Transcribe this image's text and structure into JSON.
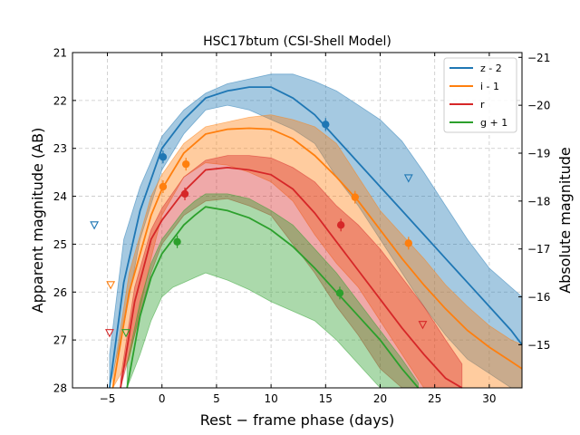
{
  "chart_data": {
    "type": "line",
    "title": "HSC17btum (CSI-Shell Model)",
    "xlabel": "Rest − frame phase (days)",
    "ylabel": "Apparent magnitude (AB)",
    "y2label": "Absolute magnitude",
    "xlim": [
      -8.2,
      33
    ],
    "ylim": [
      28,
      21
    ],
    "y2lim": [
      -14.1,
      -21.1
    ],
    "grid": true,
    "legend_position": "top-right",
    "x_ticks": [
      -5,
      0,
      5,
      10,
      15,
      20,
      25,
      30
    ],
    "x_tick_labels": [
      "−5",
      "0",
      "5",
      "10",
      "15",
      "20",
      "25",
      "30"
    ],
    "y_ticks": [
      21,
      22,
      23,
      24,
      25,
      26,
      27,
      28
    ],
    "y_tick_labels": [
      "21",
      "22",
      "23",
      "24",
      "25",
      "26",
      "27",
      "28"
    ],
    "y2_ticks": [
      -21,
      -20,
      -19,
      -18,
      -17,
      -16,
      -15
    ],
    "y2_tick_labels": [
      "−21",
      "−20",
      "−19",
      "−18",
      "−17",
      "−16",
      "−15"
    ],
    "series": [
      {
        "name": "z - 2",
        "color": "#1f77b4",
        "model_x": [
          -4.8,
          -3.5,
          -2,
          0,
          2,
          4,
          6,
          8,
          10,
          12,
          14,
          16,
          18,
          20,
          22,
          24,
          26,
          28,
          30,
          32,
          33
        ],
        "model_y": [
          28.0,
          25.8,
          24.3,
          23.0,
          22.4,
          21.95,
          21.8,
          21.72,
          21.72,
          21.95,
          22.3,
          22.8,
          23.3,
          23.8,
          24.3,
          24.8,
          25.3,
          25.8,
          26.3,
          26.8,
          27.1
        ],
        "band_upper": [
          27.3,
          24.9,
          23.8,
          22.75,
          22.2,
          21.85,
          21.65,
          21.55,
          21.45,
          21.45,
          21.6,
          21.8,
          22.1,
          22.4,
          22.85,
          23.5,
          24.2,
          24.9,
          25.5,
          25.9,
          26.1
        ],
        "band_lower": [
          28.0,
          26.7,
          24.9,
          23.45,
          22.7,
          22.2,
          22.1,
          22.2,
          22.4,
          22.6,
          22.9,
          23.6,
          24.2,
          24.9,
          25.6,
          26.3,
          26.9,
          27.4,
          27.7,
          28.0,
          28.0
        ],
        "points": [
          {
            "x": 0.1,
            "y": 23.18
          },
          {
            "x": 15.0,
            "y": 22.5
          }
        ],
        "upper_limits": [
          {
            "x": -6.2,
            "y": 24.6
          },
          {
            "x": 22.6,
            "y": 23.62
          }
        ]
      },
      {
        "name": "i - 1",
        "color": "#ff7f0e",
        "model_x": [
          -4.5,
          -3,
          -1,
          0,
          2,
          4,
          6,
          8,
          10,
          12,
          14,
          16,
          18,
          20,
          22,
          24,
          26,
          28,
          30,
          32,
          33
        ],
        "model_y": [
          28.0,
          26.0,
          24.4,
          23.85,
          23.1,
          22.7,
          22.6,
          22.58,
          22.6,
          22.8,
          23.15,
          23.6,
          24.1,
          24.7,
          25.3,
          25.85,
          26.35,
          26.8,
          27.15,
          27.45,
          27.6
        ],
        "band_upper": [
          27.8,
          25.6,
          24.0,
          23.55,
          22.9,
          22.55,
          22.45,
          22.35,
          22.3,
          22.4,
          22.55,
          22.9,
          23.6,
          24.3,
          24.8,
          25.3,
          25.85,
          26.3,
          26.7,
          27.0,
          27.1
        ],
        "band_lower": [
          28.0,
          27.4,
          25.3,
          24.4,
          23.6,
          23.3,
          23.35,
          23.5,
          23.7,
          24.1,
          24.8,
          25.4,
          25.9,
          26.6,
          27.3,
          28.0,
          28.0,
          28.0,
          28.0,
          28.0,
          28.0
        ],
        "points": [
          {
            "x": 0.1,
            "y": 23.8
          },
          {
            "x": 2.2,
            "y": 23.33
          },
          {
            "x": 17.7,
            "y": 24.02
          },
          {
            "x": 22.6,
            "y": 24.98
          }
        ],
        "upper_limits": [
          {
            "x": -4.7,
            "y": 25.85
          }
        ]
      },
      {
        "name": "r",
        "color": "#d62728",
        "model_x": [
          -3.8,
          -2.5,
          -1,
          0,
          2,
          4,
          6,
          8,
          10,
          12,
          14,
          16,
          18,
          20,
          22,
          24,
          26,
          27.5
        ],
        "model_y": [
          28.0,
          26.2,
          24.9,
          24.5,
          23.9,
          23.45,
          23.4,
          23.45,
          23.55,
          23.85,
          24.35,
          24.95,
          25.55,
          26.15,
          26.75,
          27.3,
          27.8,
          28.0
        ],
        "band_upper": [
          27.8,
          25.9,
          24.7,
          24.25,
          23.6,
          23.25,
          23.15,
          23.15,
          23.2,
          23.4,
          23.7,
          24.2,
          24.6,
          25.1,
          25.7,
          26.3,
          27.0,
          27.5
        ],
        "band_lower": [
          28.0,
          26.9,
          25.6,
          25.0,
          24.4,
          24.1,
          24.05,
          24.2,
          24.4,
          25.0,
          25.6,
          26.3,
          26.9,
          27.6,
          28.0,
          28.0,
          28.0,
          28.0
        ],
        "points": [
          {
            "x": 2.1,
            "y": 23.95
          },
          {
            "x": 16.4,
            "y": 24.6
          }
        ],
        "upper_limits": [
          {
            "x": -4.8,
            "y": 26.85
          },
          {
            "x": 23.9,
            "y": 26.68
          }
        ]
      },
      {
        "name": "g + 1",
        "color": "#2ca02c",
        "model_x": [
          -3.2,
          -2,
          -1,
          0,
          1,
          2,
          3,
          4,
          6,
          8,
          10,
          12,
          14,
          16,
          18,
          20,
          22,
          23.5
        ],
        "model_y": [
          28.0,
          26.5,
          25.7,
          25.2,
          24.9,
          24.6,
          24.4,
          24.22,
          24.3,
          24.45,
          24.7,
          25.05,
          25.5,
          26.0,
          26.5,
          27.0,
          27.6,
          28.0
        ],
        "band_upper": [
          27.5,
          26.2,
          25.4,
          24.9,
          24.6,
          24.3,
          24.1,
          23.95,
          23.95,
          24.05,
          24.3,
          24.6,
          25.1,
          25.6,
          26.2,
          26.8,
          27.4,
          27.9
        ],
        "band_lower": [
          28.0,
          27.3,
          26.6,
          26.1,
          25.9,
          25.8,
          25.7,
          25.6,
          25.75,
          25.95,
          26.2,
          26.4,
          26.6,
          27.0,
          27.5,
          28.0,
          28.0,
          28.0
        ],
        "points": [
          {
            "x": 1.4,
            "y": 24.95
          },
          {
            "x": 16.3,
            "y": 26.02
          }
        ],
        "upper_limits": [
          {
            "x": -3.3,
            "y": 26.85
          }
        ]
      }
    ]
  }
}
